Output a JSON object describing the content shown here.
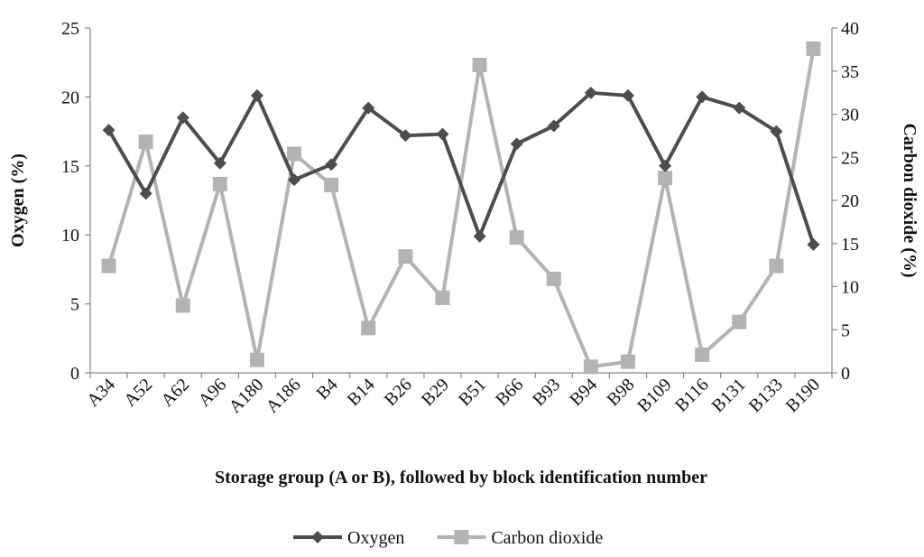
{
  "chart_data": {
    "type": "line",
    "categories": [
      "A34",
      "A52",
      "A62",
      "A96",
      "A180",
      "A186",
      "B4",
      "B14",
      "B26",
      "B29",
      "B51",
      "B66",
      "B93",
      "B94",
      "B98",
      "B109",
      "B116",
      "B131",
      "B133",
      "B190"
    ],
    "xlabel": "Storage group (A or B), followed by block identification number",
    "ylabel": "Oxygen (%)",
    "y2label": "Carbon dioxide (%)",
    "ylim": [
      0,
      25
    ],
    "y2lim": [
      0,
      40
    ],
    "yticks": [
      "0",
      "5",
      "10",
      "15",
      "20",
      "25"
    ],
    "y2ticks": [
      "0",
      "5",
      "10",
      "15",
      "20",
      "25",
      "30",
      "35",
      "40"
    ],
    "grid": false,
    "legend_position": "bottom",
    "series": [
      {
        "name": "Oxygen",
        "axis": "left",
        "marker": "diamond",
        "color": "#4d4d4d",
        "values": [
          17.6,
          13.0,
          18.5,
          15.2,
          20.1,
          14.0,
          15.1,
          19.2,
          17.2,
          17.3,
          9.9,
          16.6,
          17.9,
          20.3,
          20.1,
          15.0,
          20.0,
          19.2,
          17.5,
          9.3
        ]
      },
      {
        "name": "Carbon dioxide",
        "axis": "right",
        "marker": "square",
        "color": "#b3b3b3",
        "values": [
          12.4,
          26.8,
          7.8,
          21.9,
          1.5,
          25.4,
          21.8,
          5.2,
          13.5,
          8.7,
          35.7,
          15.7,
          10.9,
          0.7,
          1.3,
          22.6,
          2.1,
          5.9,
          12.4,
          37.6
        ]
      }
    ]
  }
}
